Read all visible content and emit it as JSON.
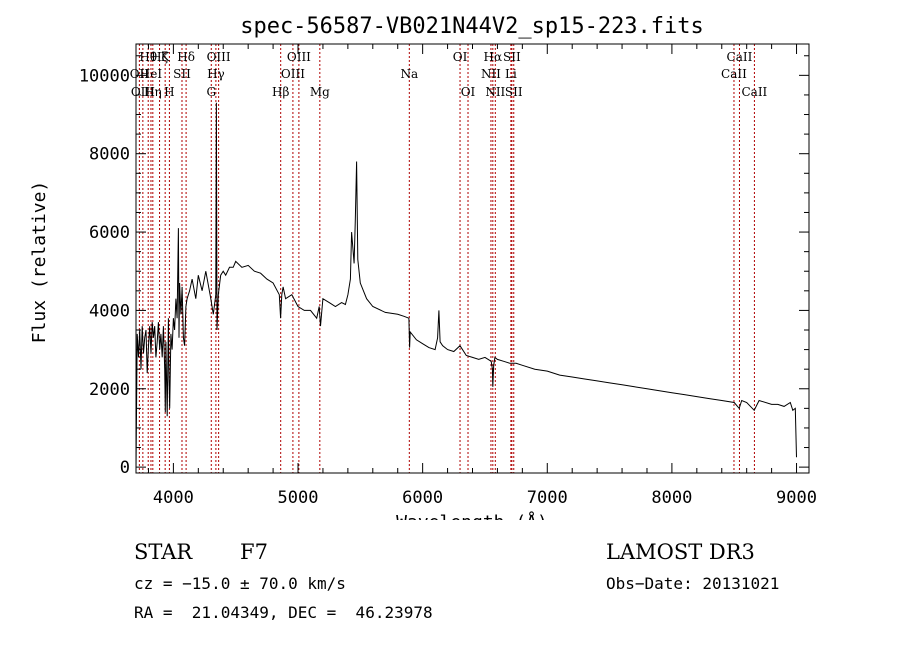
{
  "chart_data": {
    "type": "line",
    "title": "spec-56587-VB021N44V2_sp15-223.fits",
    "xlabel": "Wavelength (Å)",
    "ylabel": "Flux (relative)",
    "xlim": [
      3700,
      9100
    ],
    "ylim": [
      -150,
      10800
    ],
    "xticks": [
      4000,
      5000,
      6000,
      7000,
      8000,
      9000
    ],
    "yticks": [
      0,
      2000,
      4000,
      6000,
      8000,
      10000
    ],
    "series": [
      {
        "name": "flux",
        "x": [
          3700,
          3710,
          3720,
          3730,
          3740,
          3750,
          3760,
          3770,
          3780,
          3790,
          3800,
          3810,
          3820,
          3830,
          3840,
          3850,
          3860,
          3870,
          3880,
          3890,
          3900,
          3910,
          3920,
          3930,
          3935,
          3940,
          3950,
          3960,
          3965,
          3970,
          3980,
          3990,
          4000,
          4010,
          4020,
          4030,
          4040,
          4045,
          4050,
          4060,
          4070,
          4080,
          4090,
          4100,
          4110,
          4130,
          4150,
          4180,
          4200,
          4230,
          4260,
          4300,
          4320,
          4340,
          4345,
          4350,
          4360,
          4380,
          4400,
          4420,
          4450,
          4480,
          4500,
          4550,
          4600,
          4650,
          4700,
          4750,
          4800,
          4850,
          4860,
          4870,
          4880,
          4900,
          4950,
          5000,
          5050,
          5100,
          5150,
          5170,
          5180,
          5200,
          5250,
          5300,
          5350,
          5380,
          5400,
          5420,
          5430,
          5450,
          5460,
          5470,
          5480,
          5500,
          5550,
          5600,
          5700,
          5800,
          5850,
          5890,
          5895,
          5900,
          5950,
          6000,
          6050,
          6100,
          6120,
          6130,
          6140,
          6160,
          6200,
          6250,
          6300,
          6350,
          6400,
          6450,
          6500,
          6550,
          6560,
          6563,
          6570,
          6580,
          6600,
          6650,
          6700,
          6750,
          6800,
          6900,
          7000,
          7100,
          7200,
          7300,
          7400,
          7500,
          7600,
          7700,
          7800,
          7900,
          8000,
          8100,
          8200,
          8300,
          8400,
          8500,
          8540,
          8560,
          8600,
          8660,
          8700,
          8800,
          8850,
          8900,
          8950,
          8970,
          8990,
          9000
        ],
        "values": [
          -100,
          3400,
          2800,
          3500,
          2500,
          3600,
          2900,
          3300,
          3500,
          2400,
          3100,
          3600,
          2900,
          3700,
          3300,
          3600,
          2800,
          3200,
          3700,
          3000,
          3400,
          2800,
          3600,
          2500,
          1400,
          3200,
          1300,
          3800,
          2300,
          1500,
          3400,
          3000,
          3800,
          3500,
          4300,
          3800,
          6100,
          3300,
          4700,
          3900,
          4600,
          3300,
          3100,
          4100,
          4300,
          4500,
          4800,
          4300,
          4900,
          4500,
          5000,
          4300,
          3900,
          4400,
          9300,
          3500,
          4400,
          4900,
          5000,
          4900,
          5100,
          5100,
          5250,
          5100,
          5150,
          5000,
          4950,
          4800,
          4700,
          4400,
          3800,
          4400,
          4600,
          4300,
          4400,
          4100,
          4000,
          4000,
          3800,
          4100,
          3600,
          4300,
          4200,
          4100,
          4200,
          4150,
          4400,
          4800,
          6000,
          5200,
          6300,
          7800,
          5300,
          4700,
          4300,
          4100,
          3950,
          3900,
          3850,
          3800,
          3050,
          3450,
          3250,
          3150,
          3050,
          3000,
          3300,
          4000,
          3200,
          3100,
          3000,
          2950,
          3100,
          2850,
          2800,
          2750,
          2800,
          2700,
          2500,
          2050,
          2600,
          2800,
          2750,
          2700,
          2650,
          2650,
          2600,
          2500,
          2450,
          2350,
          2300,
          2250,
          2200,
          2150,
          2100,
          2050,
          2000,
          1950,
          1900,
          1850,
          1800,
          1750,
          1700,
          1650,
          1500,
          1700,
          1650,
          1450,
          1700,
          1600,
          1600,
          1550,
          1650,
          1450,
          1500,
          250
        ]
      }
    ],
    "lines": [
      {
        "label": "Hθ",
        "wave": 3798,
        "row": 0
      },
      {
        "label": "OII",
        "wave": 3727,
        "row": 1
      },
      {
        "label": "OIII",
        "wave": 3755,
        "row": 2
      },
      {
        "label": "Hη",
        "wave": 3835,
        "row": 2
      },
      {
        "label": "HeI",
        "wave": 3820,
        "row": 1
      },
      {
        "label": "Hζ",
        "wave": 3889,
        "row": 0
      },
      {
        "label": "K",
        "wave": 3934,
        "row": 0
      },
      {
        "label": "H",
        "wave": 3968,
        "row": 2
      },
      {
        "label": "SII",
        "wave": 4069,
        "row": 1
      },
      {
        "label": "Hδ",
        "wave": 4102,
        "row": 0
      },
      {
        "label": "G",
        "wave": 4304,
        "row": 2
      },
      {
        "label": "Hγ",
        "wave": 4341,
        "row": 1
      },
      {
        "label": "OIII",
        "wave": 4363,
        "row": 0
      },
      {
        "label": "Hβ",
        "wave": 4861,
        "row": 2
      },
      {
        "label": "OIII",
        "wave": 4959,
        "row": 1
      },
      {
        "label": "OIII",
        "wave": 5007,
        "row": 0
      },
      {
        "label": "Mg",
        "wave": 5175,
        "row": 2
      },
      {
        "label": "Na",
        "wave": 5893,
        "row": 1
      },
      {
        "label": "OI",
        "wave": 6300,
        "row": 0
      },
      {
        "label": "OI",
        "wave": 6364,
        "row": 2
      },
      {
        "label": "NII",
        "wave": 6548,
        "row": 1
      },
      {
        "label": "Hα",
        "wave": 6563,
        "row": 0
      },
      {
        "label": "NII",
        "wave": 6583,
        "row": 2
      },
      {
        "label": "Li",
        "wave": 6708,
        "row": 1
      },
      {
        "label": "SII",
        "wave": 6716,
        "row": 0
      },
      {
        "label": "SII",
        "wave": 6731,
        "row": 2
      },
      {
        "label": "CaII",
        "wave": 8498,
        "row": 1
      },
      {
        "label": "CaII",
        "wave": 8542,
        "row": 0
      },
      {
        "label": "CaII",
        "wave": 8662,
        "row": 2
      }
    ]
  },
  "info": {
    "object_class": "STAR",
    "subclass": "F7",
    "redshift_text": "cz = −15.0 ± 70.0 km/s",
    "coords_text": "RA =  21.04349, DEC =  46.23978",
    "survey": "LAMOST DR3",
    "obs_date": "Obs−Date: 20131021"
  },
  "colors": {
    "spectrum": "#000000",
    "line_marker": "#b00000",
    "axes": "#000000"
  }
}
